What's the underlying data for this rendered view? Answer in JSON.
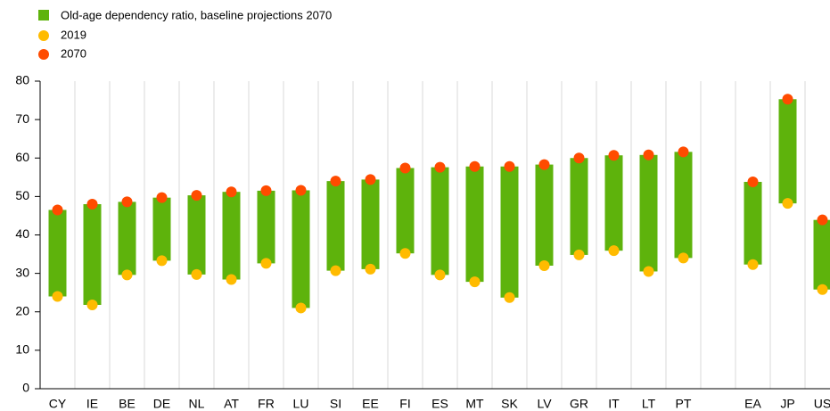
{
  "chart_data": {
    "type": "range-dot",
    "categories": [
      "CY",
      "IE",
      "BE",
      "DE",
      "NL",
      "AT",
      "FR",
      "LU",
      "SI",
      "EE",
      "FI",
      "ES",
      "MT",
      "SK",
      "LV",
      "GR",
      "IT",
      "LT",
      "PT",
      null,
      "EA",
      "JP",
      "US"
    ],
    "series": [
      {
        "name": "Old-age dependency ratio, baseline projections 2070",
        "color": "#5eb30c"
      },
      {
        "name": "2019",
        "color": "#ffbb00",
        "values": [
          24.0,
          21.8,
          29.6,
          33.3,
          29.7,
          28.4,
          32.6,
          21.0,
          30.7,
          31.1,
          35.2,
          29.6,
          27.8,
          23.7,
          32.0,
          34.8,
          35.9,
          30.5,
          34.0,
          null,
          32.3,
          48.2,
          25.8
        ]
      },
      {
        "name": "2070",
        "color": "#ff4b00",
        "values": [
          46.5,
          48.0,
          48.6,
          49.7,
          50.3,
          51.2,
          51.5,
          51.6,
          54.0,
          54.4,
          57.4,
          57.6,
          57.8,
          57.8,
          58.3,
          60.0,
          60.7,
          60.8,
          61.6,
          null,
          53.8,
          75.3,
          43.9
        ]
      }
    ],
    "ylim": [
      0,
      80
    ],
    "yticks": [
      0,
      10,
      20,
      30,
      40,
      50,
      60,
      70,
      80
    ]
  }
}
